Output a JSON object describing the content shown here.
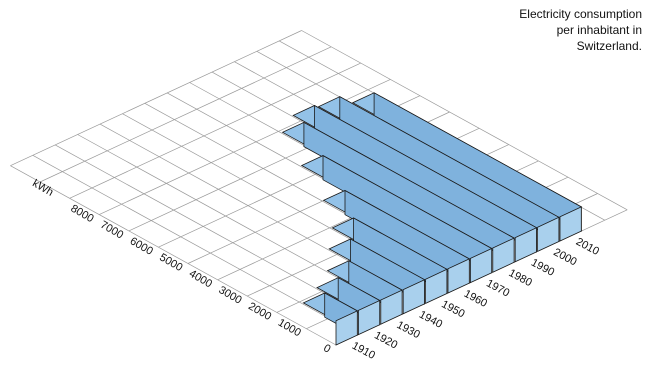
{
  "chart_data": {
    "type": "bar",
    "title_lines": [
      "Electricity consumption",
      "per inhabitant in",
      "Switzerland."
    ],
    "ylabel": "kWh",
    "xlabel": "",
    "categories": [
      "1910",
      "1920",
      "1930",
      "1940",
      "1950",
      "1960",
      "1970",
      "1980",
      "1990",
      "2000",
      "2010"
    ],
    "values": [
      1100,
      1400,
      1800,
      2500,
      3150,
      4200,
      5700,
      7100,
      7500,
      7400,
      7000
    ],
    "y_ticks": [
      0,
      1000,
      2000,
      3000,
      4000,
      5000,
      6000,
      7000,
      8000
    ],
    "y_tick_labels": [
      "0",
      "1000",
      "2000",
      "3000",
      "4000",
      "5000",
      "6000",
      "7000",
      "8000"
    ],
    "ylim": [
      0,
      8000
    ],
    "grid": true,
    "colors": {
      "bar_front": "#a9d0ed",
      "bar_top": "#93c2e8",
      "bar_side": "#7fb2dd",
      "bar_edge": "#1a1a1a",
      "grid": "#9a9a9a"
    }
  }
}
